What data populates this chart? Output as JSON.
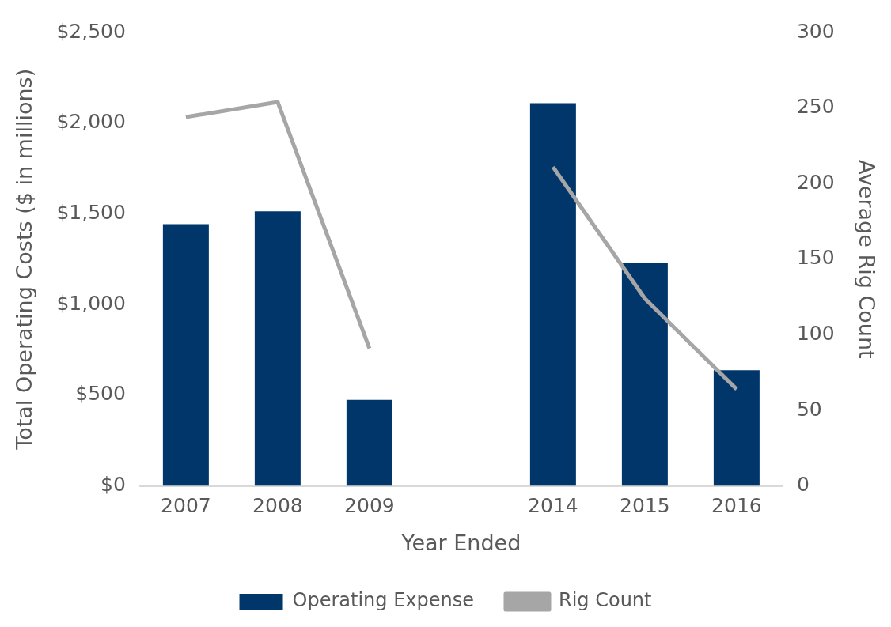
{
  "chart_data": {
    "type": "bar",
    "xlabel": "Year Ended",
    "ylabel": "Total Operating Costs ($ in millions)",
    "y2label": "Average Rig Count",
    "categories": [
      "2007",
      "2008",
      "2009",
      null,
      "2014",
      "2015",
      "2016"
    ],
    "series": [
      {
        "name": "Operating Expense",
        "color": "#00366a",
        "values": [
          1443,
          1514,
          474,
          null,
          2110,
          1229,
          638
        ]
      },
      {
        "name": "Rig Count",
        "type": "line",
        "axis": "y2",
        "color": "#a6a6a6",
        "marker": "none",
        "values": [
          244,
          254,
          91,
          null,
          211,
          124,
          64
        ]
      }
    ],
    "ylim": [
      0,
      2500
    ],
    "yticks": [
      {
        "value": 0,
        "label": "$0"
      },
      {
        "value": 500,
        "label": "$500"
      },
      {
        "value": 1000,
        "label": "$1,000"
      },
      {
        "value": 1500,
        "label": "$1,500"
      },
      {
        "value": 2000,
        "label": "$2,000"
      },
      {
        "value": 2500,
        "label": "$2,500"
      }
    ],
    "y2lim": [
      0,
      300
    ],
    "y2ticks": [
      0,
      50,
      100,
      150,
      200,
      250,
      300
    ],
    "grid": false,
    "legend": "bottom"
  }
}
